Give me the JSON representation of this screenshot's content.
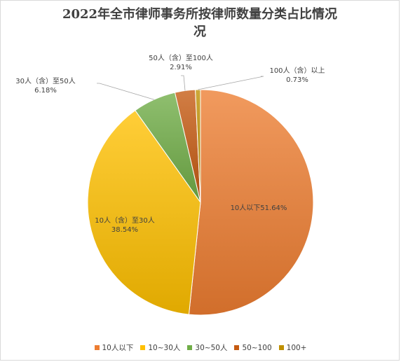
{
  "chart_data": {
    "type": "pie",
    "title": "2022年全市律师事务所按律师数量分类占比情况",
    "title_lines": [
      "2022年全市律师事务所按律师数量分类占比情况",
      "况"
    ],
    "categories": [
      "10人以下",
      "10~30人",
      "30~50人",
      "50~100",
      "100+"
    ],
    "values": [
      51.64,
      38.54,
      6.18,
      2.91,
      0.73
    ],
    "colors": [
      "#ed7d31",
      "#ffc000",
      "#70ad47",
      "#c55a11",
      "#bf9000"
    ],
    "data_labels": [
      {
        "name": "10人以下",
        "value": "51.64%"
      },
      {
        "name": "10人（含）至30人",
        "value": "38.54%"
      },
      {
        "name": "30人（含）至50人",
        "value": "6.18%"
      },
      {
        "name": "50人（含）至100人",
        "value": "2.91%"
      },
      {
        "name": "100人（含）以上",
        "value": "0.73%"
      }
    ],
    "legend_position": "bottom"
  }
}
